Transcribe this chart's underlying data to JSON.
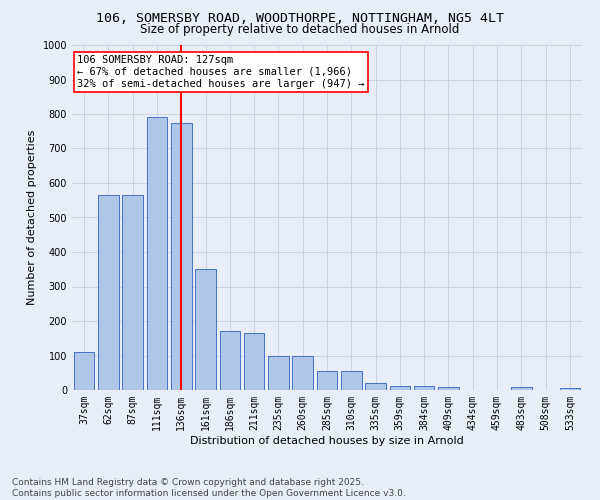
{
  "title_line1": "106, SOMERSBY ROAD, WOODTHORPE, NOTTINGHAM, NG5 4LT",
  "title_line2": "Size of property relative to detached houses in Arnold",
  "xlabel": "Distribution of detached houses by size in Arnold",
  "ylabel": "Number of detached properties",
  "categories": [
    "37sqm",
    "62sqm",
    "87sqm",
    "111sqm",
    "136sqm",
    "161sqm",
    "186sqm",
    "211sqm",
    "235sqm",
    "260sqm",
    "285sqm",
    "310sqm",
    "335sqm",
    "359sqm",
    "384sqm",
    "409sqm",
    "434sqm",
    "459sqm",
    "483sqm",
    "508sqm",
    "533sqm"
  ],
  "values": [
    110,
    565,
    565,
    790,
    775,
    350,
    170,
    165,
    100,
    100,
    55,
    55,
    20,
    13,
    13,
    10,
    0,
    0,
    9,
    0,
    5
  ],
  "bar_color": "#aec6e8",
  "bar_edge_color": "#4472c4",
  "vline_x": 4.0,
  "vline_color": "red",
  "annotation_text": "106 SOMERSBY ROAD: 127sqm\n← 67% of detached houses are smaller (1,966)\n32% of semi-detached houses are larger (947) →",
  "annotation_box_color": "white",
  "annotation_box_edge": "red",
  "ylim": [
    0,
    1000
  ],
  "yticks": [
    0,
    100,
    200,
    300,
    400,
    500,
    600,
    700,
    800,
    900,
    1000
  ],
  "grid_color": "#c8d4e8",
  "bg_color": "#e8eef8",
  "fig_bg_color": "#e8eef8",
  "footer1": "Contains HM Land Registry data © Crown copyright and database right 2025.",
  "footer2": "Contains public sector information licensed under the Open Government Licence v3.0.",
  "title_fontsize": 9.5,
  "subtitle_fontsize": 8.5,
  "tick_fontsize": 7,
  "ylabel_fontsize": 8,
  "xlabel_fontsize": 8,
  "footer_fontsize": 6.5,
  "annot_fontsize": 7.5
}
